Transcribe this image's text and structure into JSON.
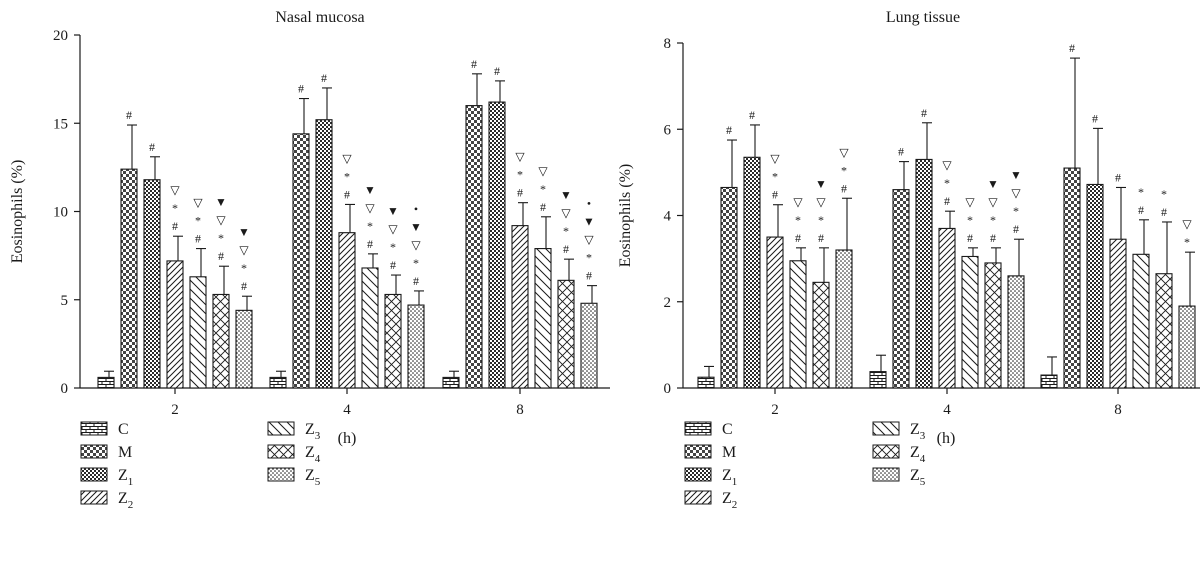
{
  "chart_data": [
    {
      "type": "bar",
      "title": "Nasal mucosa",
      "xlabel": "(h)",
      "ylabel": "Eosinophils (%)",
      "ylim": [
        0,
        20
      ],
      "yticks": [
        "0",
        "5",
        "10",
        "15",
        "20"
      ],
      "categories": [
        "2",
        "4",
        "8"
      ],
      "series": [
        {
          "name": "C",
          "values": [
            0.6,
            0.6,
            0.6
          ],
          "errors": [
            0.35,
            0.35,
            0.35
          ],
          "pattern": "brick",
          "marks": [
            [],
            [],
            []
          ]
        },
        {
          "name": "M",
          "values": [
            12.4,
            14.4,
            16.0
          ],
          "errors": [
            2.5,
            2.0,
            1.8
          ],
          "pattern": "checker",
          "marks": [
            [
              "#"
            ],
            [
              "#"
            ],
            [
              "#"
            ]
          ]
        },
        {
          "name": "Z1",
          "values": [
            11.8,
            15.2,
            16.2
          ],
          "errors": [
            1.3,
            1.8,
            1.2
          ],
          "pattern": "fine-checker",
          "marks": [
            [
              "#"
            ],
            [
              "#"
            ],
            [
              "#"
            ]
          ]
        },
        {
          "name": "Z2",
          "values": [
            7.2,
            8.8,
            9.2
          ],
          "errors": [
            1.4,
            1.6,
            1.3
          ],
          "pattern": "diag-right",
          "marks": [
            [
              "#",
              "*",
              "▽"
            ],
            [
              "#",
              "*",
              "▽"
            ],
            [
              "#",
              "*",
              "▽"
            ]
          ]
        },
        {
          "name": "Z3",
          "values": [
            6.3,
            6.8,
            7.9
          ],
          "errors": [
            1.6,
            0.8,
            1.8
          ],
          "pattern": "diag-left",
          "marks": [
            [
              "#",
              "*",
              "▽"
            ],
            [
              "#",
              "*",
              "▽",
              "▼"
            ],
            [
              "#",
              "*",
              "▽"
            ]
          ]
        },
        {
          "name": "Z4",
          "values": [
            5.3,
            5.3,
            6.1
          ],
          "errors": [
            1.6,
            1.1,
            1.2
          ],
          "pattern": "crosshatch",
          "marks": [
            [
              "#",
              "*",
              "▽",
              "▼"
            ],
            [
              "#",
              "*",
              "▽",
              "▼"
            ],
            [
              "#",
              "*",
              "▽",
              "▼"
            ]
          ]
        },
        {
          "name": "Z5",
          "values": [
            4.4,
            4.7,
            4.8
          ],
          "errors": [
            0.8,
            0.8,
            1.0
          ],
          "pattern": "dots",
          "marks": [
            [
              "#",
              "*",
              "▽",
              "▼"
            ],
            [
              "#",
              "*",
              "▽",
              "▼",
              "•"
            ],
            [
              "#",
              "*",
              "▽",
              "▼",
              "•"
            ]
          ]
        }
      ],
      "legend": [
        "C",
        "M",
        "Z1",
        "Z3",
        "Z4",
        "Z5",
        "Z2"
      ]
    },
    {
      "type": "bar",
      "title": "Lung tissue",
      "xlabel": "(h)",
      "ylabel": "Eosinophils (%)",
      "ylim": [
        0,
        8
      ],
      "yticks": [
        "0",
        "2",
        "4",
        "6",
        "8"
      ],
      "categories": [
        "2",
        "4",
        "8"
      ],
      "series": [
        {
          "name": "C",
          "values": [
            0.25,
            0.38,
            0.3
          ],
          "errors": [
            0.25,
            0.38,
            0.42
          ],
          "pattern": "brick",
          "marks": [
            [],
            [],
            []
          ]
        },
        {
          "name": "M",
          "values": [
            4.65,
            4.6,
            5.1
          ],
          "errors": [
            1.1,
            0.65,
            2.55
          ],
          "pattern": "checker",
          "marks": [
            [
              "#"
            ],
            [
              "#"
            ],
            [
              "#"
            ]
          ]
        },
        {
          "name": "Z1",
          "values": [
            5.35,
            5.3,
            4.72
          ],
          "errors": [
            0.75,
            0.85,
            1.3
          ],
          "pattern": "fine-checker",
          "marks": [
            [
              "#"
            ],
            [
              "#"
            ],
            [
              "#"
            ]
          ]
        },
        {
          "name": "Z2",
          "values": [
            3.5,
            3.7,
            3.45
          ],
          "errors": [
            0.75,
            0.4,
            1.2
          ],
          "pattern": "diag-right",
          "marks": [
            [
              "#",
              "*",
              "▽"
            ],
            [
              "#",
              "*",
              "▽"
            ],
            [
              "#"
            ]
          ]
        },
        {
          "name": "Z3",
          "values": [
            2.95,
            3.05,
            3.1
          ],
          "errors": [
            0.3,
            0.2,
            0.8
          ],
          "pattern": "diag-left",
          "marks": [
            [
              "#",
              "*",
              "▽"
            ],
            [
              "#",
              "*",
              "▽"
            ],
            [
              "#",
              "*"
            ]
          ]
        },
        {
          "name": "Z4",
          "values": [
            2.45,
            2.9,
            2.65
          ],
          "errors": [
            0.8,
            0.35,
            1.2
          ],
          "pattern": "crosshatch",
          "marks": [
            [
              "#",
              "*",
              "▽",
              "▼"
            ],
            [
              "#",
              "*",
              "▽",
              "▼"
            ],
            [
              "#",
              "*"
            ]
          ]
        },
        {
          "name": "Z5",
          "values": [
            3.2,
            2.6,
            1.9
          ],
          "errors": [
            1.2,
            0.85,
            1.25
          ],
          "pattern": "dots",
          "marks": [
            [
              "#",
              "*",
              "▽"
            ],
            [
              "#",
              "*",
              "▽",
              "▼"
            ],
            [
              "*",
              "▽"
            ]
          ]
        }
      ],
      "legend": [
        "C",
        "M",
        "Z1",
        "Z3",
        "Z4",
        "Z5",
        "Z2"
      ]
    }
  ]
}
